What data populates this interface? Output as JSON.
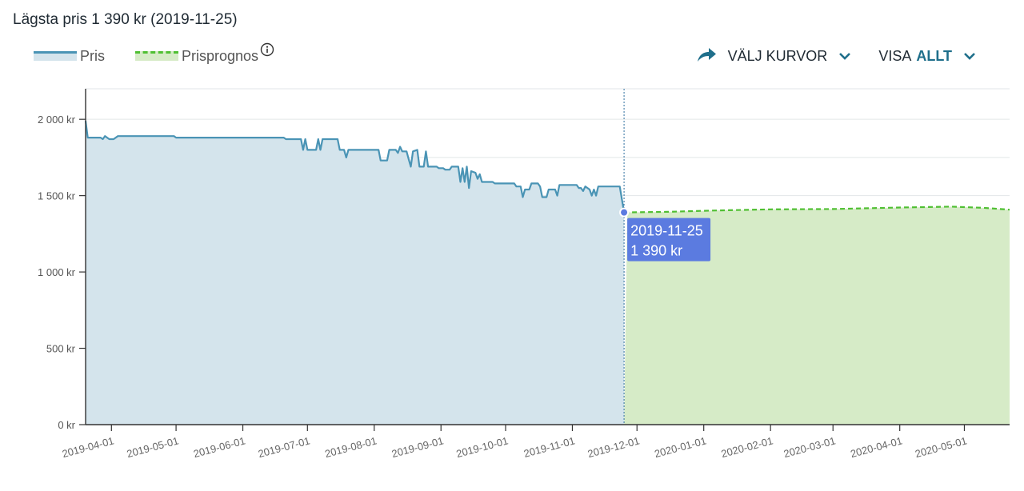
{
  "headline": "Lägsta pris 1 390 kr (2019-11-25)",
  "legend": {
    "pris": "Pris",
    "prognos": "Prisprognos"
  },
  "controls": {
    "valj_kurvor": "VÄLJ KURVOR",
    "visa_label": "VISA",
    "visa_value": "ALLT"
  },
  "tooltip": {
    "date": "2019-11-25",
    "price": "1 390 kr"
  },
  "colors": {
    "price_line": "#4a94b5",
    "price_fill": "#d4e4ec",
    "forecast_line": "#4fbf32",
    "forecast_fill": "#d6ebc7",
    "tooltip_bg": "#5b7be0"
  },
  "chart_data": {
    "type": "line",
    "ylim": [
      0,
      2200
    ],
    "xlim": [
      "2019-03-20",
      "2020-05-22"
    ],
    "yticks": [
      {
        "value": 0,
        "label": "0 kr"
      },
      {
        "value": 500,
        "label": "500 kr"
      },
      {
        "value": 1000,
        "label": "1 000 kr"
      },
      {
        "value": 1500,
        "label": "1 500 kr"
      },
      {
        "value": 2000,
        "label": "2 000 kr"
      }
    ],
    "xticks": [
      "2019-04-01",
      "2019-05-01",
      "2019-06-01",
      "2019-07-01",
      "2019-08-01",
      "2019-09-01",
      "2019-10-01",
      "2019-11-01",
      "2019-12-01",
      "2020-01-01",
      "2020-02-01",
      "2020-03-01",
      "2020-04-01",
      "2020-05-01"
    ],
    "grid": true,
    "series": [
      {
        "name": "Pris",
        "style": "solid-area",
        "points": [
          [
            "2019-03-20",
            1990
          ],
          [
            "2019-03-21",
            1880
          ],
          [
            "2019-03-27",
            1880
          ],
          [
            "2019-03-28",
            1870
          ],
          [
            "2019-03-29",
            1890
          ],
          [
            "2019-03-31",
            1870
          ],
          [
            "2019-04-02",
            1870
          ],
          [
            "2019-04-04",
            1890
          ],
          [
            "2019-04-30",
            1890
          ],
          [
            "2019-05-01",
            1880
          ],
          [
            "2019-06-20",
            1880
          ],
          [
            "2019-06-21",
            1870
          ],
          [
            "2019-06-28",
            1870
          ],
          [
            "2019-06-29",
            1800
          ],
          [
            "2019-06-30",
            1870
          ],
          [
            "2019-07-01",
            1800
          ],
          [
            "2019-07-05",
            1800
          ],
          [
            "2019-07-06",
            1870
          ],
          [
            "2019-07-07",
            1800
          ],
          [
            "2019-07-08",
            1870
          ],
          [
            "2019-07-15",
            1870
          ],
          [
            "2019-07-16",
            1800
          ],
          [
            "2019-07-18",
            1800
          ],
          [
            "2019-07-19",
            1750
          ],
          [
            "2019-07-20",
            1800
          ],
          [
            "2019-08-03",
            1800
          ],
          [
            "2019-08-04",
            1730
          ],
          [
            "2019-08-07",
            1730
          ],
          [
            "2019-08-08",
            1800
          ],
          [
            "2019-08-11",
            1800
          ],
          [
            "2019-08-12",
            1780
          ],
          [
            "2019-08-13",
            1820
          ],
          [
            "2019-08-14",
            1790
          ],
          [
            "2019-08-16",
            1790
          ],
          [
            "2019-08-17",
            1740
          ],
          [
            "2019-08-18",
            1690
          ],
          [
            "2019-08-19",
            1790
          ],
          [
            "2019-08-21",
            1800
          ],
          [
            "2019-08-22",
            1690
          ],
          [
            "2019-08-24",
            1690
          ],
          [
            "2019-08-25",
            1790
          ],
          [
            "2019-08-26",
            1690
          ],
          [
            "2019-08-30",
            1690
          ],
          [
            "2019-08-31",
            1680
          ],
          [
            "2019-09-02",
            1680
          ],
          [
            "2019-09-03",
            1670
          ],
          [
            "2019-09-05",
            1670
          ],
          [
            "2019-09-06",
            1690
          ],
          [
            "2019-09-09",
            1690
          ],
          [
            "2019-09-10",
            1590
          ],
          [
            "2019-09-11",
            1680
          ],
          [
            "2019-09-12",
            1590
          ],
          [
            "2019-09-13",
            1690
          ],
          [
            "2019-09-14",
            1550
          ],
          [
            "2019-09-15",
            1660
          ],
          [
            "2019-09-17",
            1650
          ],
          [
            "2019-09-18",
            1610
          ],
          [
            "2019-09-19",
            1640
          ],
          [
            "2019-09-20",
            1590
          ],
          [
            "2019-09-25",
            1590
          ],
          [
            "2019-09-26",
            1580
          ],
          [
            "2019-10-05",
            1580
          ],
          [
            "2019-10-06",
            1560
          ],
          [
            "2019-10-08",
            1560
          ],
          [
            "2019-10-09",
            1490
          ],
          [
            "2019-10-10",
            1540
          ],
          [
            "2019-10-12",
            1540
          ],
          [
            "2019-10-13",
            1580
          ],
          [
            "2019-10-16",
            1580
          ],
          [
            "2019-10-17",
            1560
          ],
          [
            "2019-10-18",
            1490
          ],
          [
            "2019-10-20",
            1490
          ],
          [
            "2019-10-21",
            1540
          ],
          [
            "2019-10-24",
            1540
          ],
          [
            "2019-10-25",
            1500
          ],
          [
            "2019-10-26",
            1570
          ],
          [
            "2019-11-03",
            1570
          ],
          [
            "2019-11-04",
            1550
          ],
          [
            "2019-11-05",
            1550
          ],
          [
            "2019-11-06",
            1530
          ],
          [
            "2019-11-07",
            1560
          ],
          [
            "2019-11-09",
            1540
          ],
          [
            "2019-11-10",
            1500
          ],
          [
            "2019-11-11",
            1540
          ],
          [
            "2019-11-12",
            1500
          ],
          [
            "2019-11-13",
            1560
          ],
          [
            "2019-11-23",
            1560
          ],
          [
            "2019-11-25",
            1390
          ]
        ]
      },
      {
        "name": "Prisprognos",
        "style": "dashed-area",
        "points": [
          [
            "2019-11-25",
            1390
          ],
          [
            "2019-12-15",
            1394
          ],
          [
            "2020-01-05",
            1402
          ],
          [
            "2020-02-01",
            1410
          ],
          [
            "2020-03-01",
            1412
          ],
          [
            "2020-04-01",
            1422
          ],
          [
            "2020-04-25",
            1428
          ],
          [
            "2020-05-10",
            1420
          ],
          [
            "2020-05-22",
            1408
          ]
        ]
      }
    ],
    "highlight": {
      "date": "2019-11-25",
      "value": 1390
    }
  }
}
